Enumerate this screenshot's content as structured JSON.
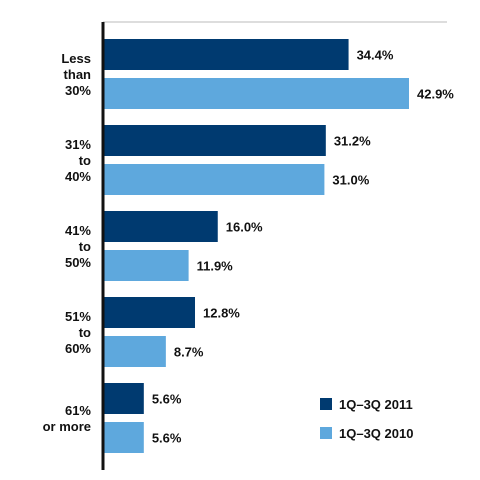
{
  "chart_data": {
    "type": "bar",
    "orientation": "horizontal",
    "categories": [
      [
        "Less",
        "than",
        "30%"
      ],
      [
        "31%",
        "to",
        "40%"
      ],
      [
        "41%",
        "to",
        "50%"
      ],
      [
        "51%",
        "to",
        "60%"
      ],
      [
        "61%",
        "or more"
      ]
    ],
    "series": [
      {
        "name": "1Q–3Q 2011",
        "color": "#003a70",
        "values": [
          34.4,
          31.2,
          16.0,
          12.8,
          5.6
        ],
        "labels": [
          "34.4%",
          "31.2%",
          "16.0%",
          "12.8%",
          "5.6%"
        ]
      },
      {
        "name": "1Q–3Q 2010",
        "color": "#5ea8dd",
        "values": [
          42.9,
          31.0,
          11.9,
          8.7,
          5.6
        ],
        "labels": [
          "42.9%",
          "31.0%",
          "11.9%",
          "8.7%",
          "5.6%"
        ]
      }
    ],
    "xlim": [
      0,
      42.9
    ],
    "legend_position": "bottom-right",
    "grid": false
  }
}
